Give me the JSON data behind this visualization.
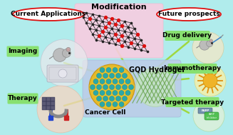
{
  "bg_color": "#b0ecec",
  "modification_label": "Modification",
  "gqd_label": "GQD Hydrogel",
  "cancer_label": "Cancer Cell",
  "current_apps_label": "Current Applications",
  "future_label": "Future prospects",
  "imaging_label": "Imaging",
  "therapy_label": "Therapy",
  "drug_label": "Drug delivery",
  "immuno_label": "Immunotherapy",
  "targeted_label": "Targeted therapy",
  "line_color": "#a0d840",
  "mod_bg": "#f5cce0",
  "center_bg": "#c0d0f0",
  "imaging_circle_color": "#e8e8ec",
  "therapy_circle_color": "#f8d8c8",
  "drug_circle_color": "#f0e8c8",
  "immuno_circle_color": "#f8f0b0",
  "targeted_circle_color": "#e8f8e0"
}
